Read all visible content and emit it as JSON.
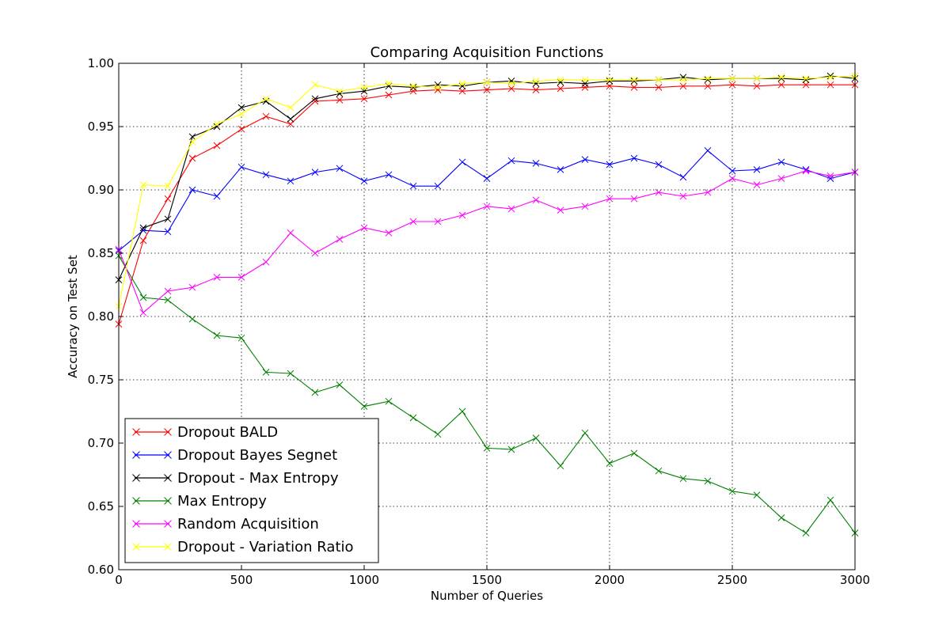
{
  "chart_data": {
    "type": "line",
    "title": "Comparing Acquisition Functions",
    "xlabel": "Number of Queries",
    "ylabel": "Accuracy on Test Set",
    "xlim": [
      0,
      3000
    ],
    "ylim": [
      0.6,
      1.0
    ],
    "xticks": [
      0,
      500,
      1000,
      1500,
      2000,
      2500,
      3000
    ],
    "xtick_labels": [
      "0",
      "500",
      "1000",
      "1500",
      "2000",
      "2500",
      "3000"
    ],
    "yticks": [
      0.6,
      0.65,
      0.7,
      0.75,
      0.8,
      0.85,
      0.9,
      0.95,
      1.0
    ],
    "ytick_labels": [
      "0.60",
      "0.65",
      "0.70",
      "0.75",
      "0.80",
      "0.85",
      "0.90",
      "0.95",
      "1.00"
    ],
    "grid": true,
    "legend_position": "bottom-left",
    "marker": "x",
    "x": [
      0,
      100,
      200,
      300,
      400,
      500,
      600,
      700,
      800,
      900,
      1000,
      1100,
      1200,
      1300,
      1400,
      1500,
      1600,
      1700,
      1800,
      1900,
      2000,
      2100,
      2200,
      2300,
      2400,
      2500,
      2600,
      2700,
      2800,
      2900,
      3000
    ],
    "series": [
      {
        "name": "Dropout BALD",
        "color": "#ff0000",
        "values": [
          0.794,
          0.86,
          0.893,
          0.925,
          0.935,
          0.948,
          0.958,
          0.952,
          0.97,
          0.971,
          0.972,
          0.975,
          0.978,
          0.979,
          0.978,
          0.979,
          0.98,
          0.979,
          0.98,
          0.981,
          0.982,
          0.981,
          0.981,
          0.982,
          0.982,
          0.983,
          0.982,
          0.983,
          0.983,
          0.983,
          0.983
        ]
      },
      {
        "name": "Dropout Bayes Segnet",
        "color": "#0000ff",
        "values": [
          0.852,
          0.868,
          0.867,
          0.9,
          0.895,
          0.918,
          0.912,
          0.907,
          0.914,
          0.917,
          0.907,
          0.912,
          0.903,
          0.903,
          0.922,
          0.909,
          0.923,
          0.921,
          0.916,
          0.924,
          0.92,
          0.925,
          0.92,
          0.91,
          0.931,
          0.915,
          0.916,
          0.922,
          0.916,
          0.909,
          0.914
        ]
      },
      {
        "name": "Dropout - Max Entropy",
        "color": "#000000",
        "values": [
          0.829,
          0.87,
          0.877,
          0.942,
          0.95,
          0.965,
          0.97,
          0.956,
          0.972,
          0.976,
          0.978,
          0.982,
          0.981,
          0.983,
          0.982,
          0.985,
          0.986,
          0.984,
          0.985,
          0.984,
          0.986,
          0.986,
          0.987,
          0.989,
          0.987,
          0.988,
          0.988,
          0.988,
          0.987,
          0.99,
          0.988
        ]
      },
      {
        "name": "Max Entropy",
        "color": "#008000",
        "values": [
          0.848,
          0.815,
          0.813,
          0.798,
          0.785,
          0.783,
          0.756,
          0.755,
          0.74,
          0.746,
          0.729,
          0.733,
          0.72,
          0.707,
          0.725,
          0.696,
          0.695,
          0.704,
          0.682,
          0.708,
          0.684,
          0.692,
          0.678,
          0.672,
          0.67,
          0.662,
          0.659,
          0.641,
          0.629,
          0.655,
          0.629
        ]
      },
      {
        "name": "Random Acquisition",
        "color": "#ff00ff",
        "values": [
          0.853,
          0.803,
          0.82,
          0.823,
          0.831,
          0.831,
          0.843,
          0.866,
          0.85,
          0.861,
          0.87,
          0.866,
          0.875,
          0.875,
          0.88,
          0.887,
          0.885,
          0.892,
          0.884,
          0.887,
          0.893,
          0.893,
          0.898,
          0.895,
          0.898,
          0.909,
          0.904,
          0.909,
          0.915,
          0.911,
          0.914
        ]
      },
      {
        "name": "Dropout - Variation Ratio",
        "color": "#ffff00",
        "values": [
          0.808,
          0.904,
          0.903,
          0.938,
          0.952,
          0.96,
          0.972,
          0.965,
          0.983,
          0.978,
          0.981,
          0.984,
          0.982,
          0.981,
          0.984,
          0.985,
          0.984,
          0.986,
          0.987,
          0.987,
          0.987,
          0.987,
          0.987,
          0.987,
          0.988,
          0.988,
          0.988,
          0.989,
          0.988,
          0.989,
          0.99
        ]
      }
    ]
  }
}
